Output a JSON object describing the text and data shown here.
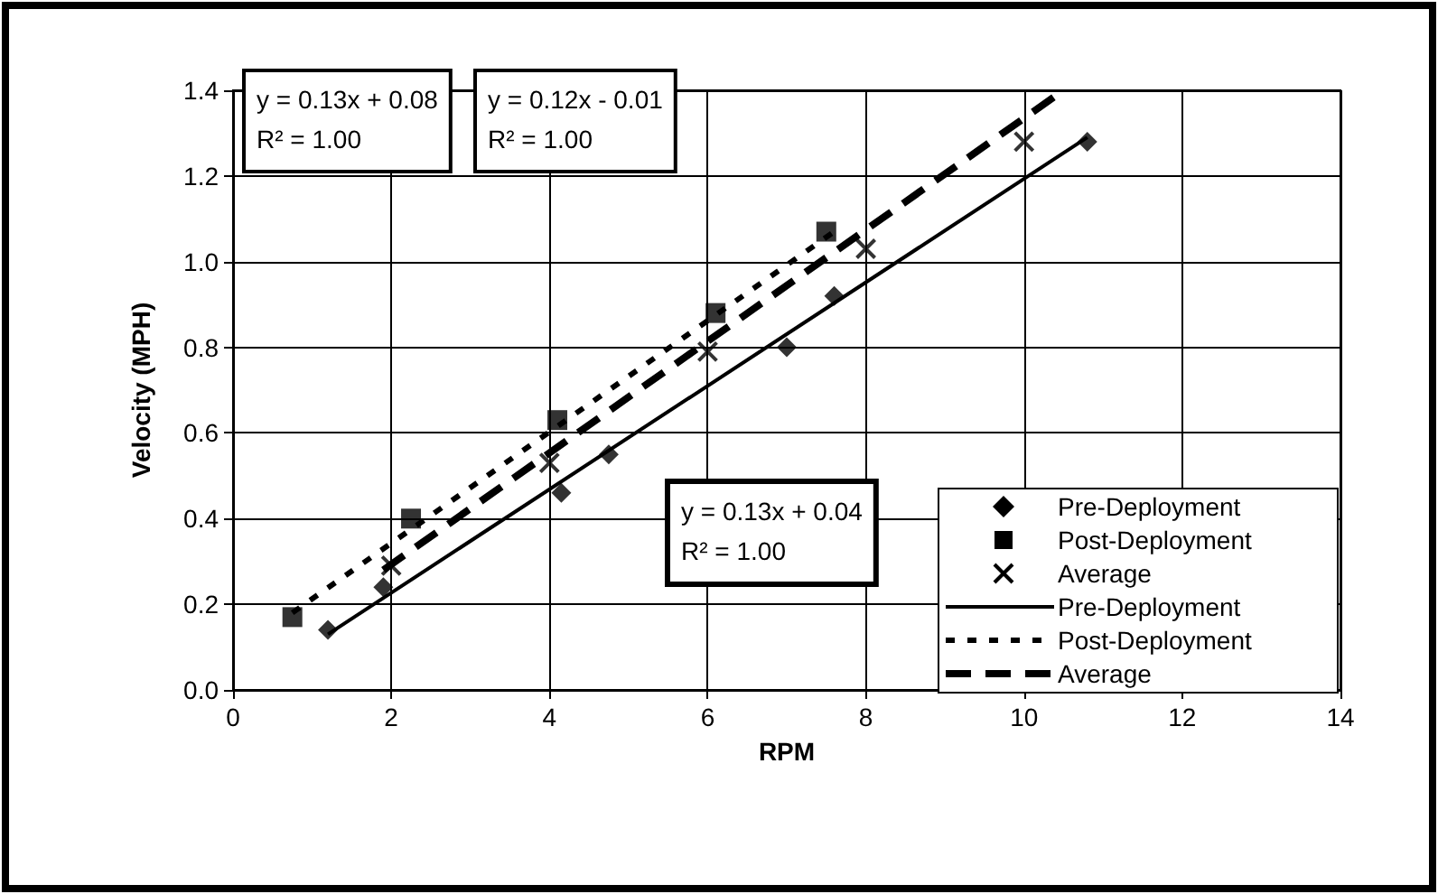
{
  "chart_data": {
    "type": "scatter",
    "xlabel": "RPM",
    "ylabel": "Velocity (MPH)",
    "xlim": [
      0,
      14
    ],
    "xticks": [
      0,
      2,
      4,
      6,
      8,
      10,
      12,
      14
    ],
    "ylim": [
      0,
      1.4
    ],
    "yticks": [
      {
        "value": 0,
        "label": "0.0"
      },
      {
        "value": 0.2,
        "label": "0.2"
      },
      {
        "value": 0.4,
        "label": "0.4"
      },
      {
        "value": 0.6,
        "label": "0.6"
      },
      {
        "value": 0.8,
        "label": "0.8"
      },
      {
        "value": 1.0,
        "label": "1.0"
      },
      {
        "value": 1.2,
        "label": "1.2"
      },
      {
        "value": 1.4,
        "label": "1.4"
      }
    ],
    "grid": true,
    "legend": "bottom right",
    "series": [
      {
        "name": "Pre-Deployment",
        "type": "scatter",
        "marker": "diamond",
        "color": "#000000",
        "x": [
          1.2,
          1.9,
          4.15,
          4.75,
          7.0,
          7.6,
          10.8
        ],
        "values": [
          0.14,
          0.24,
          0.46,
          0.55,
          0.8,
          0.92,
          1.28
        ]
      },
      {
        "name": "Post-Deployment",
        "type": "scatter",
        "marker": "square",
        "color": "#000000",
        "x": [
          0.75,
          2.25,
          4.1,
          6.1,
          7.5
        ],
        "values": [
          0.17,
          0.4,
          0.63,
          0.88,
          1.07
        ]
      },
      {
        "name": "Average",
        "type": "scatter",
        "marker": "cross",
        "color": "#000000",
        "x": [
          2.0,
          4.0,
          6.0,
          8.0,
          10.0
        ],
        "values": [
          0.29,
          0.53,
          0.79,
          1.03,
          1.28
        ]
      },
      {
        "name": "Pre-Deployment",
        "type": "line",
        "line_style": "solid",
        "color": "#000000",
        "x": [
          1.2,
          10.8
        ],
        "values": [
          0.13,
          1.29
        ]
      },
      {
        "name": "Post-Deployment",
        "type": "line",
        "line_style": "dotted",
        "color": "#000000",
        "x": [
          0.75,
          7.6
        ],
        "values": [
          0.18,
          1.07
        ]
      },
      {
        "name": "Average",
        "type": "line",
        "line_style": "dashed",
        "color": "#000000",
        "x": [
          1.9,
          10.5
        ],
        "values": [
          0.28,
          1.4
        ]
      }
    ],
    "annotations": [
      "y = 0.13x + 0.08\nR² = 1.00",
      "y = 0.12x - 0.01\nR² = 1.00",
      "y = 0.13x + 0.04\nR² = 1.00"
    ]
  }
}
